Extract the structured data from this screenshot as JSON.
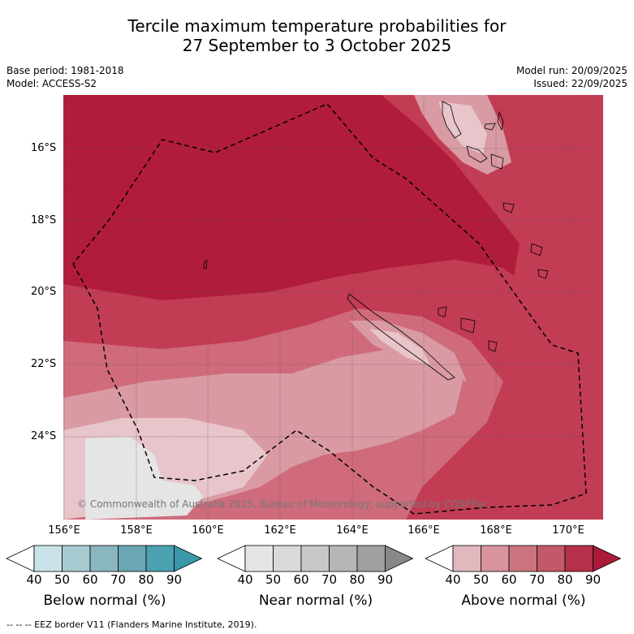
{
  "title": {
    "line1": "Tercile maximum temperature probabilities for",
    "line2": "27 September to 3 October 2025"
  },
  "meta": {
    "base_period": "Base period: 1981-2018",
    "model": "Model: ACCESS-S2",
    "model_run": "Model run: 20/09/2025",
    "issued": "Issued: 22/09/2025"
  },
  "map": {
    "latitudes": [
      "16°S",
      "18°S",
      "20°S",
      "22°S",
      "24°S"
    ],
    "longitudes": [
      "156°E",
      "158°E",
      "160°E",
      "162°E",
      "164°E",
      "166°E",
      "168°E",
      "170°E"
    ],
    "copyright": "© Commonwealth of Australia 2025, Bureau of Meteorology, supported by COSPPac",
    "colors": {
      "above_80": "#b11c3a",
      "above_70": "#c23c54",
      "above_60": "#cf6b7a",
      "above_50": "#d99aa3",
      "above_40": "#e7c5ca",
      "near_40": "#e5e5e5"
    }
  },
  "colorbars": {
    "below": {
      "label": "Below normal (%)",
      "ticks": [
        "40",
        "50",
        "60",
        "70",
        "80",
        "90"
      ],
      "colors": [
        "#ffffff",
        "#c9e2e7",
        "#a7cad0",
        "#89b6c1",
        "#6aa6b3",
        "#4aa1b0",
        "#3a98a8"
      ]
    },
    "near": {
      "label": "Near normal (%)",
      "ticks": [
        "40",
        "50",
        "60",
        "70",
        "80",
        "90"
      ],
      "colors": [
        "#ffffff",
        "#e5e5e5",
        "#d9d9d9",
        "#c8c8c8",
        "#b6b6b6",
        "#a0a0a0",
        "#888888"
      ]
    },
    "above": {
      "label": "Above normal (%)",
      "ticks": [
        "40",
        "50",
        "60",
        "70",
        "80",
        "90"
      ],
      "colors": [
        "#ffffff",
        "#e1b8be",
        "#d8939c",
        "#cb7480",
        "#c25868",
        "#b5304a",
        "#ab1a38"
      ]
    }
  },
  "footer": "--  --  -- EEZ border V11 (Flanders Marine Institute, 2019)."
}
